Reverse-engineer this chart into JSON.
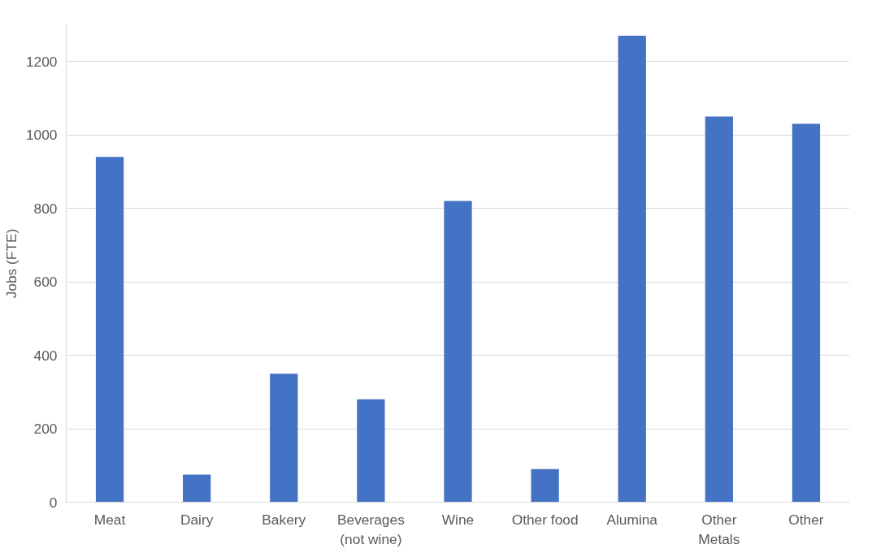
{
  "chart_data": {
    "type": "bar",
    "ylabel": "Jobs (FTE)",
    "categories": [
      "Meat",
      "Dairy",
      "Bakery",
      "Beverages (not wine)",
      "Wine",
      "Other food",
      "Alumina",
      "Other Metals",
      "Other"
    ],
    "values": [
      940,
      75,
      350,
      280,
      820,
      90,
      1270,
      1050,
      1030
    ],
    "color": "#4472c4",
    "ylim": [
      0,
      1300
    ],
    "yticks": [
      0,
      200,
      400,
      600,
      800,
      1000,
      1200
    ],
    "grid": "y"
  }
}
